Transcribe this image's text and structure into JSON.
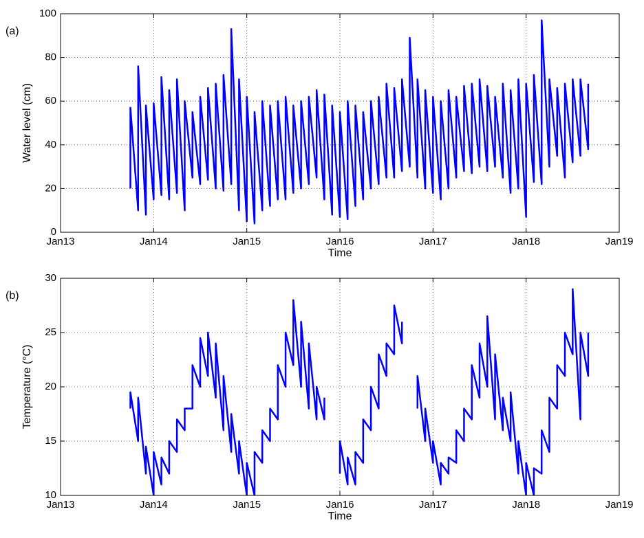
{
  "chart_data": [
    {
      "type": "line",
      "annotation": "(a)",
      "xlabel": "Time",
      "ylabel": "Water level (cm)",
      "grid": true,
      "xlim": [
        "2013-01",
        "2019-01"
      ],
      "xticks": [
        {
          "value": "2013-01",
          "label": "Jan13"
        },
        {
          "value": "2014-01",
          "label": "Jan14"
        },
        {
          "value": "2015-01",
          "label": "Jan15"
        },
        {
          "value": "2016-01",
          "label": "Jan16"
        },
        {
          "value": "2017-01",
          "label": "Jan17"
        },
        {
          "value": "2018-01",
          "label": "Jan18"
        },
        {
          "value": "2019-01",
          "label": "Jan19"
        }
      ],
      "ylim": [
        0,
        100
      ],
      "yticks": [
        0,
        20,
        40,
        60,
        80,
        100
      ],
      "x": [
        "2013-10",
        "2013-10",
        "2013-11",
        "2013-11",
        "2013-12",
        "2013-12",
        "2014-01",
        "2014-01",
        "2014-02",
        "2014-02",
        "2014-03",
        "2014-03",
        "2014-04",
        "2014-04",
        "2014-05",
        "2014-05",
        "2014-06",
        "2014-06",
        "2014-07",
        "2014-07",
        "2014-08",
        "2014-08",
        "2014-09",
        "2014-09",
        "2014-10",
        "2014-10",
        "2014-11",
        "2014-11",
        "2014-12",
        "2014-12",
        "2015-01",
        "2015-01",
        "2015-02",
        "2015-02",
        "2015-03",
        "2015-03",
        "2015-04",
        "2015-04",
        "2015-05",
        "2015-05",
        "2015-06",
        "2015-06",
        "2015-07",
        "2015-07",
        "2015-08",
        "2015-08",
        "2015-09",
        "2015-09",
        "2015-10",
        "2015-10",
        "2015-11",
        "2015-11",
        "2015-12",
        "2015-12",
        "2016-01",
        "2016-01",
        "2016-02",
        "2016-02",
        "2016-03",
        "2016-03",
        "2016-04",
        "2016-04",
        "2016-05",
        "2016-05",
        "2016-06",
        "2016-06",
        "2016-07",
        "2016-07",
        "2016-08",
        "2016-08",
        "2016-09",
        "2016-09",
        "2016-10",
        "2016-10",
        "2016-11",
        "2016-11",
        "2016-12",
        "2016-12",
        "2017-01",
        "2017-01",
        "2017-02",
        "2017-02",
        "2017-03",
        "2017-03",
        "2017-04",
        "2017-04",
        "2017-05",
        "2017-05",
        "2017-06",
        "2017-06",
        "2017-07",
        "2017-07",
        "2017-08",
        "2017-08",
        "2017-09",
        "2017-09",
        "2017-10",
        "2017-10",
        "2017-11",
        "2017-11",
        "2017-12",
        "2017-12",
        "2018-01",
        "2018-01",
        "2018-02",
        "2018-02",
        "2018-03",
        "2018-03",
        "2018-04",
        "2018-04",
        "2018-05",
        "2018-05",
        "2018-06",
        "2018-06",
        "2018-07",
        "2018-07",
        "2018-08",
        "2018-08",
        "2018-09",
        "2018-09"
      ],
      "series": [
        {
          "color": "#0000ff",
          "values": [
            20,
            57,
            10,
            76,
            8,
            58,
            15,
            59,
            17,
            71,
            15,
            65,
            18,
            70,
            10,
            60,
            25,
            55,
            22,
            62,
            24,
            66,
            20,
            68,
            19,
            72,
            22,
            93,
            10,
            70,
            5,
            62,
            4,
            55,
            10,
            60,
            12,
            58,
            15,
            60,
            15,
            62,
            18,
            58,
            20,
            60,
            22,
            62,
            25,
            65,
            15,
            63,
            8,
            58,
            7,
            55,
            6,
            60,
            12,
            58,
            15,
            55,
            20,
            60,
            22,
            62,
            25,
            68,
            25,
            66,
            28,
            70,
            30,
            89,
            25,
            70,
            20,
            65,
            18,
            62,
            15,
            60,
            20,
            65,
            25,
            62,
            28,
            67,
            27,
            68,
            30,
            70,
            28,
            67,
            30,
            62,
            25,
            68,
            18,
            65,
            20,
            70,
            7,
            68,
            23,
            72,
            22,
            97,
            30,
            70,
            35,
            66,
            25,
            68,
            32,
            70,
            35,
            70,
            38,
            68
          ]
        }
      ]
    },
    {
      "type": "line",
      "annotation": "(b)",
      "xlabel": "Time",
      "ylabel": "Temperature (°C)",
      "grid": true,
      "xlim": [
        "2013-01",
        "2019-01"
      ],
      "xticks": [
        {
          "value": "2013-01",
          "label": "Jan13"
        },
        {
          "value": "2014-01",
          "label": "Jan14"
        },
        {
          "value": "2015-01",
          "label": "Jan15"
        },
        {
          "value": "2016-01",
          "label": "Jan16"
        },
        {
          "value": "2017-01",
          "label": "Jan17"
        },
        {
          "value": "2018-01",
          "label": "Jan18"
        },
        {
          "value": "2019-01",
          "label": "Jan19"
        }
      ],
      "ylim": [
        10,
        30
      ],
      "yticks": [
        10,
        15,
        20,
        25,
        30
      ],
      "x": [
        "2013-10",
        "2013-10",
        "2013-11",
        "2013-11",
        "2013-12",
        "2013-12",
        "2014-01",
        "2014-01",
        "2014-02",
        "2014-02",
        "2014-03",
        "2014-03",
        "2014-04",
        "2014-04",
        "2014-05",
        "2014-05",
        "2014-06",
        "2014-06",
        "2014-07",
        "2014-07",
        "2014-08",
        "2014-08",
        "2014-09",
        "2014-09",
        "2014-10",
        "2014-10",
        "2014-11",
        "2014-11",
        "2014-12",
        "2014-12",
        "2015-01",
        "2015-01",
        "2015-02",
        "2015-02",
        "2015-03",
        "2015-03",
        "2015-04",
        "2015-04",
        "2015-05",
        "2015-05",
        "2015-06",
        "2015-06",
        "2015-07",
        "2015-07",
        "2015-08",
        "2015-08",
        "2015-09",
        "2015-09",
        "2015-10",
        "2015-10",
        "2015-11",
        "2015-11",
        "2015-12",
        "2015-12",
        "2016-01",
        "2016-01",
        "2016-02",
        "2016-02",
        "2016-03",
        "2016-03",
        "2016-04",
        "2016-04",
        "2016-05",
        "2016-05",
        "2016-06",
        "2016-06",
        "2016-07",
        "2016-07",
        "2016-08",
        "2016-08",
        "2016-09",
        "2016-09",
        "2016-10",
        "2016-10",
        "2016-11",
        "2016-11",
        "2016-12",
        "2016-12",
        "2017-01",
        "2017-01",
        "2017-02",
        "2017-02",
        "2017-03",
        "2017-03",
        "2017-04",
        "2017-04",
        "2017-05",
        "2017-05",
        "2017-06",
        "2017-06",
        "2017-07",
        "2017-07",
        "2017-08",
        "2017-08",
        "2017-09",
        "2017-09",
        "2017-10",
        "2017-10",
        "2017-11",
        "2017-11",
        "2017-12",
        "2017-12",
        "2018-01",
        "2018-01",
        "2018-02",
        "2018-02",
        "2018-03",
        "2018-03",
        "2018-04",
        "2018-04",
        "2018-05",
        "2018-05",
        "2018-06",
        "2018-06",
        "2018-07",
        "2018-07",
        "2018-08",
        "2018-08",
        "2018-09",
        "2018-09"
      ],
      "series": [
        {
          "color": "#0000ff",
          "values": [
            18,
            19.5,
            15,
            19,
            12,
            14.5,
            10,
            14,
            11,
            13.5,
            12,
            15,
            14,
            17,
            16,
            18,
            18,
            22,
            20,
            24.5,
            21,
            25,
            19,
            24,
            16,
            21,
            14,
            17.5,
            12,
            15,
            10,
            13,
            10,
            14,
            13,
            16,
            15,
            18,
            17,
            22,
            20,
            25,
            22,
            28,
            20,
            26,
            18,
            24,
            17,
            20,
            17,
            19,
            null,
            null,
            12,
            15,
            11,
            13.5,
            11,
            14,
            13,
            17,
            16,
            20,
            18,
            23,
            21,
            24,
            23,
            27.5,
            24,
            26,
            null,
            null,
            18,
            21,
            15,
            18,
            13,
            15,
            11,
            13,
            12,
            13.5,
            13,
            16,
            15,
            18,
            17,
            22,
            19,
            24,
            20,
            26.5,
            17,
            23,
            16,
            19,
            15,
            19.5,
            12,
            15,
            10,
            13,
            10,
            12.5,
            12,
            16,
            14,
            19,
            18,
            22,
            21,
            25,
            23,
            29,
            17,
            25,
            21,
            25
          ]
        }
      ]
    }
  ]
}
